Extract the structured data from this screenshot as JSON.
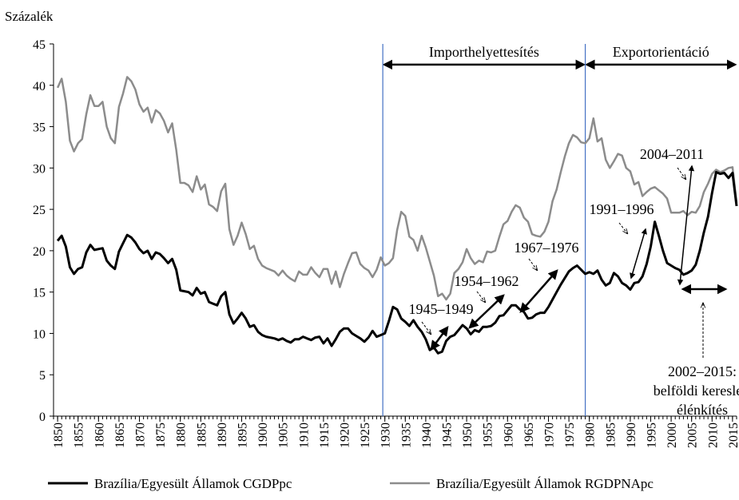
{
  "chart_data": {
    "type": "line",
    "y_label": "Százalék",
    "xlim": [
      1849,
      2016
    ],
    "ylim": [
      0,
      45
    ],
    "yticks": [
      0,
      5,
      10,
      15,
      20,
      25,
      30,
      35,
      40,
      45
    ],
    "xticks": [
      1850,
      1855,
      1860,
      1865,
      1870,
      1875,
      1880,
      1885,
      1890,
      1895,
      1900,
      1905,
      1910,
      1915,
      1920,
      1925,
      1930,
      1935,
      1940,
      1945,
      1950,
      1955,
      1960,
      1965,
      1970,
      1975,
      1980,
      1985,
      1990,
      1995,
      2000,
      2005,
      2010,
      2015
    ],
    "x": [
      1850,
      1851,
      1852,
      1853,
      1854,
      1855,
      1856,
      1857,
      1858,
      1859,
      1860,
      1861,
      1862,
      1863,
      1864,
      1865,
      1866,
      1867,
      1868,
      1869,
      1870,
      1871,
      1872,
      1873,
      1874,
      1875,
      1876,
      1877,
      1878,
      1879,
      1880,
      1881,
      1882,
      1883,
      1884,
      1885,
      1886,
      1887,
      1888,
      1889,
      1890,
      1891,
      1892,
      1893,
      1894,
      1895,
      1896,
      1897,
      1898,
      1899,
      1900,
      1901,
      1902,
      1903,
      1904,
      1905,
      1906,
      1907,
      1908,
      1909,
      1910,
      1911,
      1912,
      1913,
      1914,
      1915,
      1916,
      1917,
      1918,
      1919,
      1920,
      1921,
      1922,
      1923,
      1924,
      1925,
      1926,
      1927,
      1928,
      1929,
      1930,
      1931,
      1932,
      1933,
      1934,
      1935,
      1936,
      1937,
      1938,
      1939,
      1940,
      1941,
      1942,
      1943,
      1944,
      1945,
      1946,
      1947,
      1948,
      1949,
      1950,
      1951,
      1952,
      1953,
      1954,
      1955,
      1956,
      1957,
      1958,
      1959,
      1960,
      1961,
      1962,
      1963,
      1964,
      1965,
      1966,
      1967,
      1968,
      1969,
      1970,
      1971,
      1972,
      1973,
      1974,
      1975,
      1976,
      1977,
      1978,
      1979,
      1980,
      1981,
      1982,
      1983,
      1984,
      1985,
      1986,
      1987,
      1988,
      1989,
      1990,
      1991,
      1992,
      1993,
      1994,
      1995,
      1996,
      1997,
      1998,
      1999,
      2000,
      2001,
      2002,
      2003,
      2004,
      2005,
      2006,
      2007,
      2008,
      2009,
      2010,
      2011,
      2012,
      2013,
      2014,
      2015,
      2016
    ],
    "series": [
      {
        "name": "Brazília/Egyesült Államok CGDPpc",
        "color": "#000000",
        "width": 3,
        "values": [
          21.2,
          21.8,
          20.5,
          18,
          17.2,
          17.8,
          18,
          19.8,
          20.7,
          20.1,
          20.2,
          20.3,
          18.8,
          18.2,
          17.8,
          19.9,
          20.9,
          21.9,
          21.6,
          21,
          20.2,
          19.7,
          20,
          19,
          19.8,
          19.6,
          19.1,
          18.5,
          19,
          17.7,
          15.2,
          15.1,
          15,
          14.6,
          15.5,
          14.8,
          15,
          13.8,
          13.6,
          13.4,
          14.5,
          15,
          12.3,
          11.2,
          11.8,
          12.5,
          11.8,
          10.8,
          11,
          10.2,
          9.8,
          9.6,
          9.5,
          9.4,
          9.2,
          9.4,
          9.1,
          8.9,
          9.3,
          9.3,
          9.6,
          9.4,
          9.2,
          9.5,
          9.6,
          8.8,
          9.4,
          8.5,
          9.3,
          10.2,
          10.6,
          10.6,
          10,
          9.7,
          9.4,
          9,
          9.5,
          10.3,
          9.6,
          9.8,
          10,
          11.5,
          13.2,
          12.9,
          11.8,
          11.4,
          10.9,
          11.6,
          10.8,
          10.2,
          9.3,
          8,
          8.3,
          7.6,
          7.8,
          9.1,
          9.6,
          9.8,
          10.4,
          11,
          10.6,
          9.9,
          10.4,
          10.2,
          10.8,
          10.8,
          10.9,
          11.3,
          12.1,
          12.2,
          12.8,
          13.4,
          13.4,
          12.9,
          12.6,
          11.8,
          11.9,
          12.3,
          12.5,
          12.5,
          13.2,
          14.1,
          15,
          15.9,
          16.7,
          17.5,
          17.9,
          18.2,
          17.7,
          17.2,
          17.4,
          17.2,
          17.6,
          16.5,
          15.8,
          16.1,
          17.3,
          16.9,
          16.1,
          15.8,
          15.3,
          16.1,
          16.2,
          16.9,
          18.4,
          20.5,
          23.5,
          21.8,
          20,
          18.5,
          18.2,
          17.9,
          17.7,
          17.1,
          17.3,
          17.6,
          18.3,
          20,
          22.2,
          24.1,
          27,
          29.5,
          29.3,
          29.4,
          28.8,
          29.4,
          25.4
        ]
      },
      {
        "name": "Brazília/Egyesült Államok RGDPNApc",
        "color": "#8c8c8c",
        "width": 2.5,
        "values": [
          39.7,
          40.8,
          38,
          33.3,
          32,
          33,
          33.5,
          36.5,
          38.8,
          37.5,
          37.5,
          38,
          35,
          33.6,
          33,
          37.4,
          39,
          41,
          40.5,
          39.5,
          37.7,
          36.8,
          37.3,
          35.5,
          37,
          36.6,
          35.7,
          34.3,
          35.4,
          32.2,
          28.2,
          28.2,
          27.9,
          27.1,
          29,
          27.4,
          28,
          25.6,
          25.3,
          24.8,
          27.2,
          28.1,
          22.6,
          20.7,
          21.8,
          23.4,
          22,
          20.2,
          20.6,
          19,
          18.2,
          17.9,
          17.7,
          17.5,
          17,
          17.6,
          17,
          16.6,
          16.3,
          17.5,
          17.1,
          17.1,
          18,
          17.3,
          16.8,
          17.8,
          17.8,
          16,
          17.5,
          15.6,
          17.2,
          18.5,
          19.7,
          19.8,
          18.4,
          17.9,
          17.6,
          16.8,
          17.7,
          19.2,
          18.2,
          18.5,
          19.1,
          22.5,
          24.7,
          24.2,
          21.7,
          21.3,
          20,
          21.8,
          20.4,
          18.7,
          17,
          14.5,
          14.8,
          14.1,
          14.8,
          17.3,
          17.8,
          18.6,
          20.2,
          19.1,
          18.4,
          18.8,
          18.6,
          19.9,
          19.8,
          20,
          21.7,
          23.2,
          23.6,
          24.7,
          25.5,
          25.2,
          24,
          23.5,
          22,
          21.8,
          21.7,
          22.3,
          23.5,
          26,
          27.4,
          29.5,
          31.4,
          33,
          34,
          33.7,
          33.1,
          33,
          33.6,
          36,
          33.2,
          33.6,
          31,
          30,
          30.8,
          31.7,
          31.5,
          30,
          29.6,
          28,
          28.3,
          26.6,
          27.1,
          27.5,
          27.7,
          27.3,
          26.9,
          26.3,
          24.6,
          24.6,
          24.6,
          24.8,
          24.3,
          24.7,
          24.6,
          25.4,
          27.1,
          28.1,
          29.3,
          29.8,
          29.5,
          29.7,
          30,
          30.1,
          25.8
        ]
      }
    ],
    "periods": [
      {
        "label": "Importhelyettesítés",
        "start": 1929.5,
        "end": 1979,
        "line_color": "#4472c4"
      },
      {
        "label": "Exportorientáció",
        "start": 1979,
        "end": 2016
      }
    ],
    "annotations": [
      "1945–1949",
      "1954–1962",
      "1967–1976",
      "1991–1996",
      "2004–2011"
    ],
    "note_lines": [
      "2002–2015:",
      "belföldi kereslet-",
      "élénkítés"
    ]
  }
}
